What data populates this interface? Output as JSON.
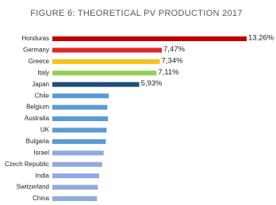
{
  "chart_data": {
    "type": "bar",
    "orientation": "horizontal",
    "title": "FIGURE 6: THEORETICAL PV PRODUCTION 2017",
    "categories": [
      "Honduras",
      "Germany",
      "Greece",
      "Italy",
      "Japan",
      "Chile",
      "Belgium",
      "Australia",
      "UK",
      "Bulgaria",
      "Israel",
      "Czech Republic",
      "India",
      "Switzerland",
      "China"
    ],
    "values": [
      13.26,
      7.47,
      7.34,
      7.11,
      5.93,
      3.85,
      3.75,
      3.8,
      3.7,
      3.65,
      3.5,
      3.4,
      3.2,
      3.1,
      3.05
    ],
    "value_labels": [
      "13,26%",
      "7,47%",
      "7,34%",
      "7,11%",
      "5,93%",
      null,
      null,
      null,
      null,
      null,
      null,
      null,
      null,
      null,
      null
    ],
    "colors": [
      "#c00000",
      "#e0282a",
      "#f5c21b",
      "#92d050",
      "#1f4e79",
      "#5b9bd5",
      "#5b9bd5",
      "#5b9bd5",
      "#5b9bd5",
      "#5b9bd5",
      "#8faadc",
      "#8faadc",
      "#8faadc",
      "#8faadc",
      "#8faadc"
    ]
  }
}
